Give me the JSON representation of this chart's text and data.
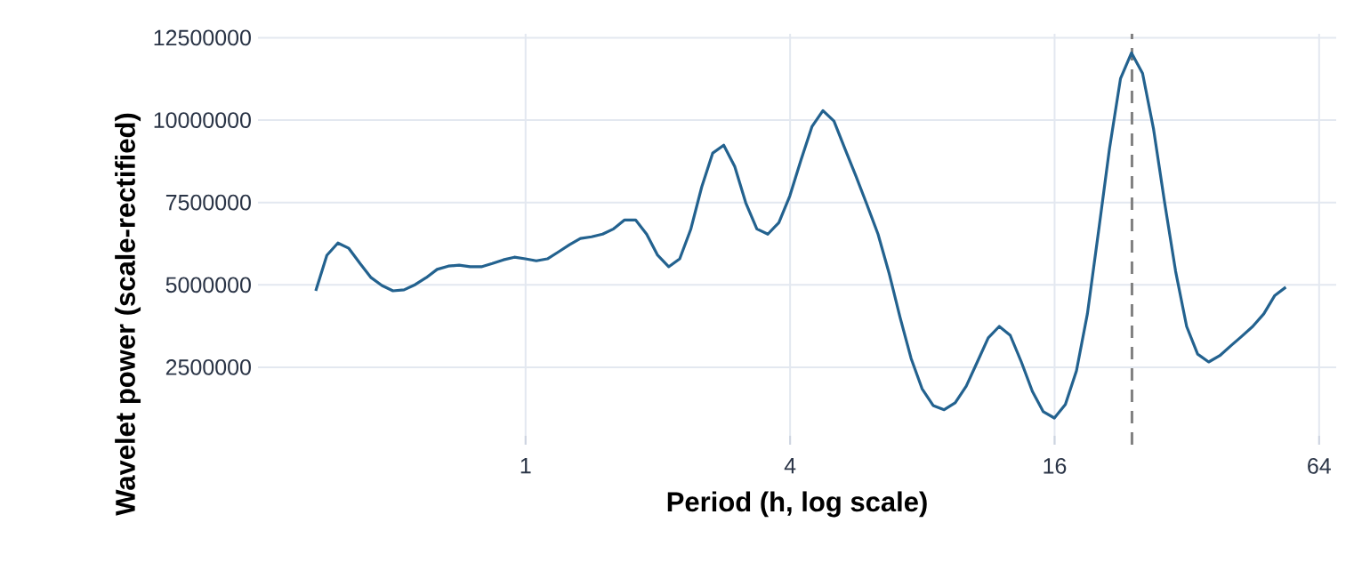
{
  "chart_data": {
    "type": "line",
    "xlabel": "Period (h, log scale)",
    "ylabel": "Wavelet power (scale-rectified)",
    "x": [
      0.333,
      0.353,
      0.374,
      0.396,
      0.42,
      0.445,
      0.471,
      0.499,
      0.529,
      0.561,
      0.594,
      0.629,
      0.667,
      0.706,
      0.748,
      0.793,
      0.84,
      0.89,
      0.943,
      0.999,
      1.058,
      1.121,
      1.188,
      1.259,
      1.333,
      1.413,
      1.497,
      1.586,
      1.68,
      1.78,
      1.886,
      1.998,
      2.117,
      2.243,
      2.376,
      2.517,
      2.667,
      2.825,
      2.993,
      3.171,
      3.36,
      3.56,
      3.771,
      3.995,
      4.233,
      4.485,
      4.751,
      5.034,
      5.333,
      5.65,
      5.986,
      6.342,
      6.719,
      7.119,
      7.542,
      7.99,
      8.466,
      8.969,
      9.502,
      10.07,
      10.67,
      11.3,
      11.97,
      12.68,
      13.44,
      14.24,
      15.08,
      15.98,
      16.93,
      17.94,
      19.0,
      20.14,
      21.33,
      22.6,
      23.94,
      25.37,
      26.88,
      28.47,
      30.17,
      31.96,
      33.86,
      35.88,
      38.01,
      40.27,
      42.67,
      45.2,
      47.89,
      50.74,
      53.75
    ],
    "values": [
      4820000,
      5900000,
      6270000,
      6110000,
      5650000,
      5220000,
      4980000,
      4820000,
      4850000,
      5010000,
      5220000,
      5470000,
      5570000,
      5600000,
      5550000,
      5550000,
      5650000,
      5760000,
      5840000,
      5790000,
      5730000,
      5790000,
      6000000,
      6220000,
      6410000,
      6460000,
      6540000,
      6700000,
      6970000,
      6970000,
      6540000,
      5900000,
      5550000,
      5790000,
      6680000,
      7970000,
      9000000,
      9240000,
      8590000,
      7490000,
      6700000,
      6540000,
      6890000,
      7700000,
      8780000,
      9800000,
      10290000,
      9970000,
      9130000,
      8300000,
      7430000,
      6540000,
      5360000,
      4010000,
      2770000,
      1850000,
      1340000,
      1210000,
      1420000,
      1930000,
      2660000,
      3390000,
      3740000,
      3470000,
      2660000,
      1770000,
      1150000,
      960000,
      1370000,
      2390000,
      4120000,
      6620000,
      9130000,
      11260000,
      12040000,
      11420000,
      9720000,
      7510000,
      5410000,
      3740000,
      2900000,
      2660000,
      2850000,
      3150000,
      3440000,
      3740000,
      4120000,
      4680000,
      4930000
    ],
    "color": "#23628f",
    "xlim": [
      0.246,
      70
    ],
    "ylim": [
      150000,
      12620000
    ],
    "xticks": [
      1,
      4,
      16,
      64
    ],
    "yticks": [
      2500000,
      5000000,
      7500000,
      10000000,
      12500000
    ],
    "log": "x",
    "grid": true,
    "ref_lines": [
      {
        "axis": "x",
        "value": 24,
        "color": "#808080",
        "line_style": "dashed"
      }
    ]
  }
}
